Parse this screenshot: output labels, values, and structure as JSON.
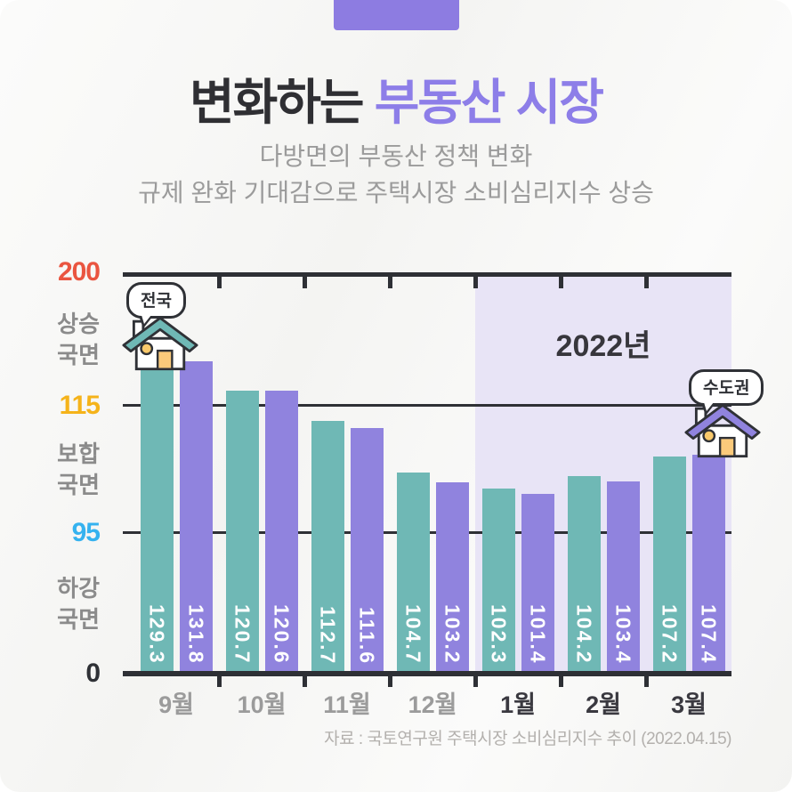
{
  "page": {
    "background": "#f7f7f5",
    "tab_color": "#8d7ce1"
  },
  "header": {
    "title_dark": "변화하는 ",
    "title_accent": "부동산 시장",
    "subtitle_line1": "다방면의 부동산 정책 변화",
    "subtitle_line2": "규제 완화 기대감으로 주택시장 소비심리지수 상승"
  },
  "chart_data": {
    "type": "bar",
    "title": "주택시장 소비심리지수 추이",
    "categories": [
      "9월",
      "10월",
      "11월",
      "12월",
      "1월",
      "2월",
      "3월"
    ],
    "series": [
      {
        "id": "nationwide",
        "name": "전국",
        "color": "#6fb8b5",
        "values": [
          129.3,
          120.7,
          112.7,
          104.7,
          102.3,
          104.2,
          107.2
        ]
      },
      {
        "id": "metro",
        "name": "수도권",
        "color": "#9083de",
        "values": [
          131.8,
          120.6,
          111.6,
          103.2,
          101.4,
          103.4,
          107.4
        ]
      }
    ],
    "y_axis": {
      "ticks": [
        {
          "label": "200",
          "value": 200,
          "color": "#ea5540"
        },
        {
          "label": "115",
          "value": 115,
          "color": "#f5b31a"
        },
        {
          "label": "95",
          "value": 95,
          "color": "#35b2ef"
        },
        {
          "label": "0",
          "value": 0,
          "color": "#2f3136"
        }
      ],
      "zones": [
        {
          "label": "상승\n국면"
        },
        {
          "label": "보합\n국면"
        },
        {
          "label": "하강\n국면"
        }
      ],
      "note": "segmented non-linear axis"
    },
    "annotation_region": {
      "label": "2022년",
      "start_category_index": 4,
      "color": "#e8e4f6",
      "label_color": "#37363c"
    },
    "category_label_colors": {
      "year2021": "#9b9b9b",
      "year2022": "#3a3940"
    },
    "legend_bubbles": [
      {
        "label": "전국",
        "attached_to": {
          "series": 0,
          "category": 0
        }
      },
      {
        "label": "수도권",
        "attached_to": {
          "series": 1,
          "category": 6
        }
      }
    ],
    "grid": "horizontal reference lines at 115 and 95",
    "legend_position": "house icons on first nationwide bar and last metro bar"
  },
  "house_icons": {
    "nationwide": {
      "roof_color": "#6fb8b5",
      "door_color": "#fbca7b",
      "window_color": "#f9c96b",
      "outline": "#2f3136"
    },
    "metro": {
      "roof_color": "#9083de",
      "door_color": "#fbca7b",
      "window_color": "#f9c96b",
      "outline": "#2f3136"
    }
  },
  "source": "자료 : 국토연구원 주택시장 소비심리지수 추이 (2022.04.15)"
}
